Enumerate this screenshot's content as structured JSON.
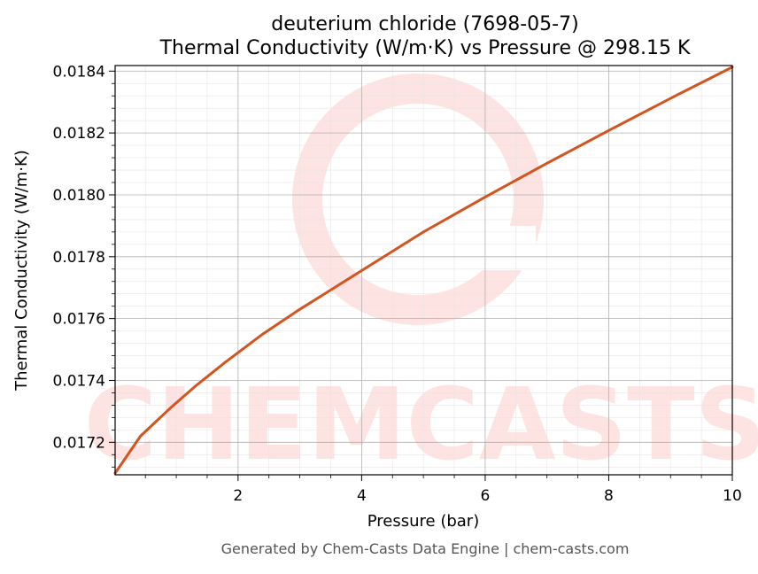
{
  "title_line1": "deuterium chloride (7698-05-7)",
  "title_line2": "Thermal Conductivity (W/m·K) vs Pressure @ 298.15 K",
  "footer": "Generated by Chem-Casts Data Engine | chem-casts.com",
  "watermark": "CHEMCASTS",
  "colors": {
    "line": "#d4541f",
    "watermark": "#fde3e1",
    "grid_major": "#b0b0b0",
    "grid_minor": "#e6e6e6"
  },
  "chart_data": {
    "type": "line",
    "xlabel": "Pressure (bar)",
    "ylabel": "Thermal Conductivity (W/m·K)",
    "xlim": [
      0.01,
      10
    ],
    "ylim": [
      0.017095,
      0.018418
    ],
    "x_ticks": [
      2,
      4,
      6,
      8,
      10
    ],
    "x_tick_labels": [
      "2",
      "4",
      "6",
      "8",
      "10"
    ],
    "y_ticks": [
      0.0172,
      0.0174,
      0.0176,
      0.0178,
      0.018,
      0.0182,
      0.0184
    ],
    "y_tick_labels": [
      "0.0172",
      "0.0174",
      "0.0176",
      "0.0178",
      "0.0180",
      "0.0182",
      "0.0184"
    ],
    "grid": true,
    "series": [
      {
        "x": [
          0.01,
          0.42,
          0.9,
          1.3,
          1.8,
          2.4,
          3.0,
          3.6,
          4.2,
          5.0,
          6.0,
          7.0,
          8.0,
          9.0,
          10.0
        ],
        "y": [
          0.0171,
          0.01722,
          0.01731,
          0.01738,
          0.01746,
          0.01755,
          0.01763,
          0.017705,
          0.01778,
          0.01788,
          0.017993,
          0.018102,
          0.018208,
          0.018312,
          0.018413
        ]
      }
    ]
  }
}
